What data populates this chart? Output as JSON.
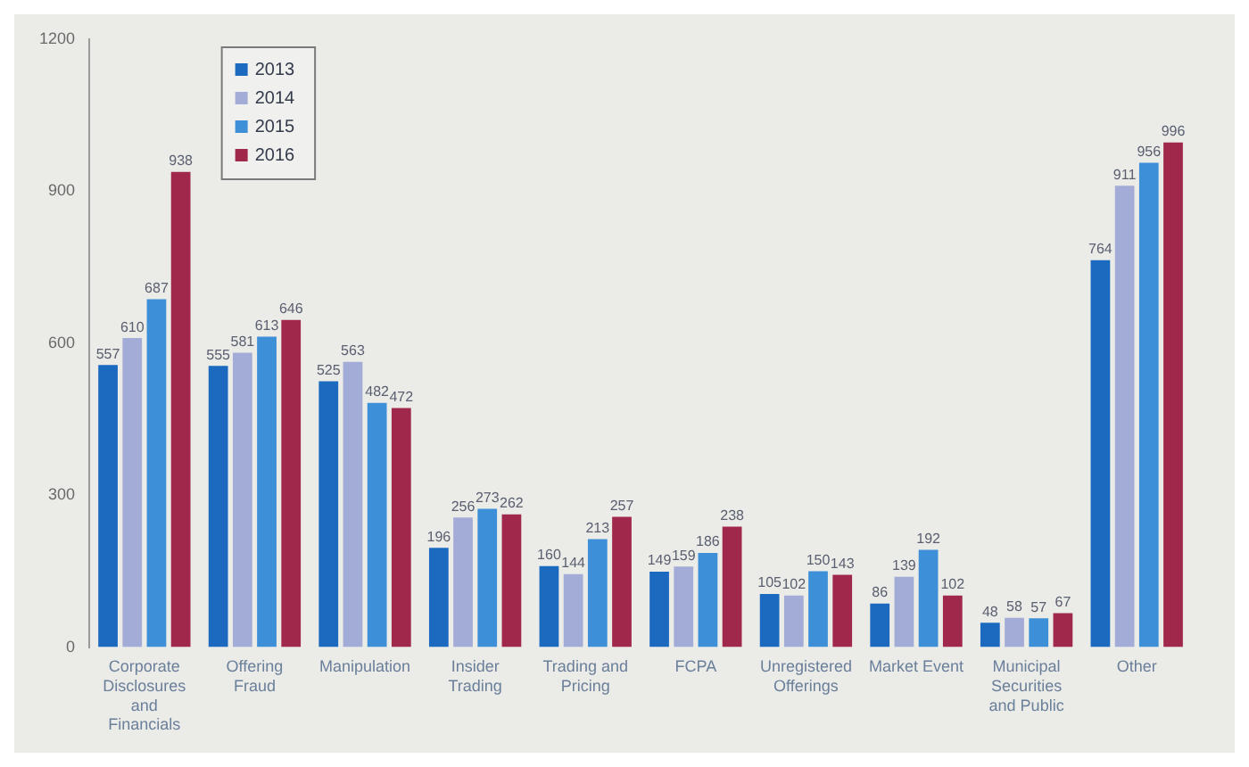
{
  "chart_data": {
    "type": "bar",
    "categories": [
      "Corporate Disclosures and Financials",
      "Offering Fraud",
      "Manipulation",
      "Insider Trading",
      "Trading and Pricing",
      "FCPA",
      "Unregistered Offerings",
      "Market Event",
      "Municipal Securities and Public",
      "Other"
    ],
    "series": [
      {
        "name": "2013",
        "color": "#1b6ac0",
        "values": [
          557,
          555,
          525,
          196,
          160,
          149,
          105,
          86,
          48,
          764
        ]
      },
      {
        "name": "2014",
        "color": "#a3acd6",
        "values": [
          610,
          581,
          563,
          256,
          144,
          159,
          102,
          139,
          58,
          911
        ]
      },
      {
        "name": "2015",
        "color": "#3d8fd8",
        "values": [
          687,
          613,
          482,
          273,
          213,
          186,
          150,
          192,
          57,
          956
        ]
      },
      {
        "name": "2016",
        "color": "#a0294b",
        "values": [
          938,
          646,
          472,
          262,
          257,
          238,
          143,
          102,
          67,
          996
        ]
      }
    ],
    "ylim": [
      0,
      1200
    ],
    "yticks": [
      0,
      300,
      600,
      900,
      1200
    ],
    "legend": "top left",
    "data_labels": true
  }
}
